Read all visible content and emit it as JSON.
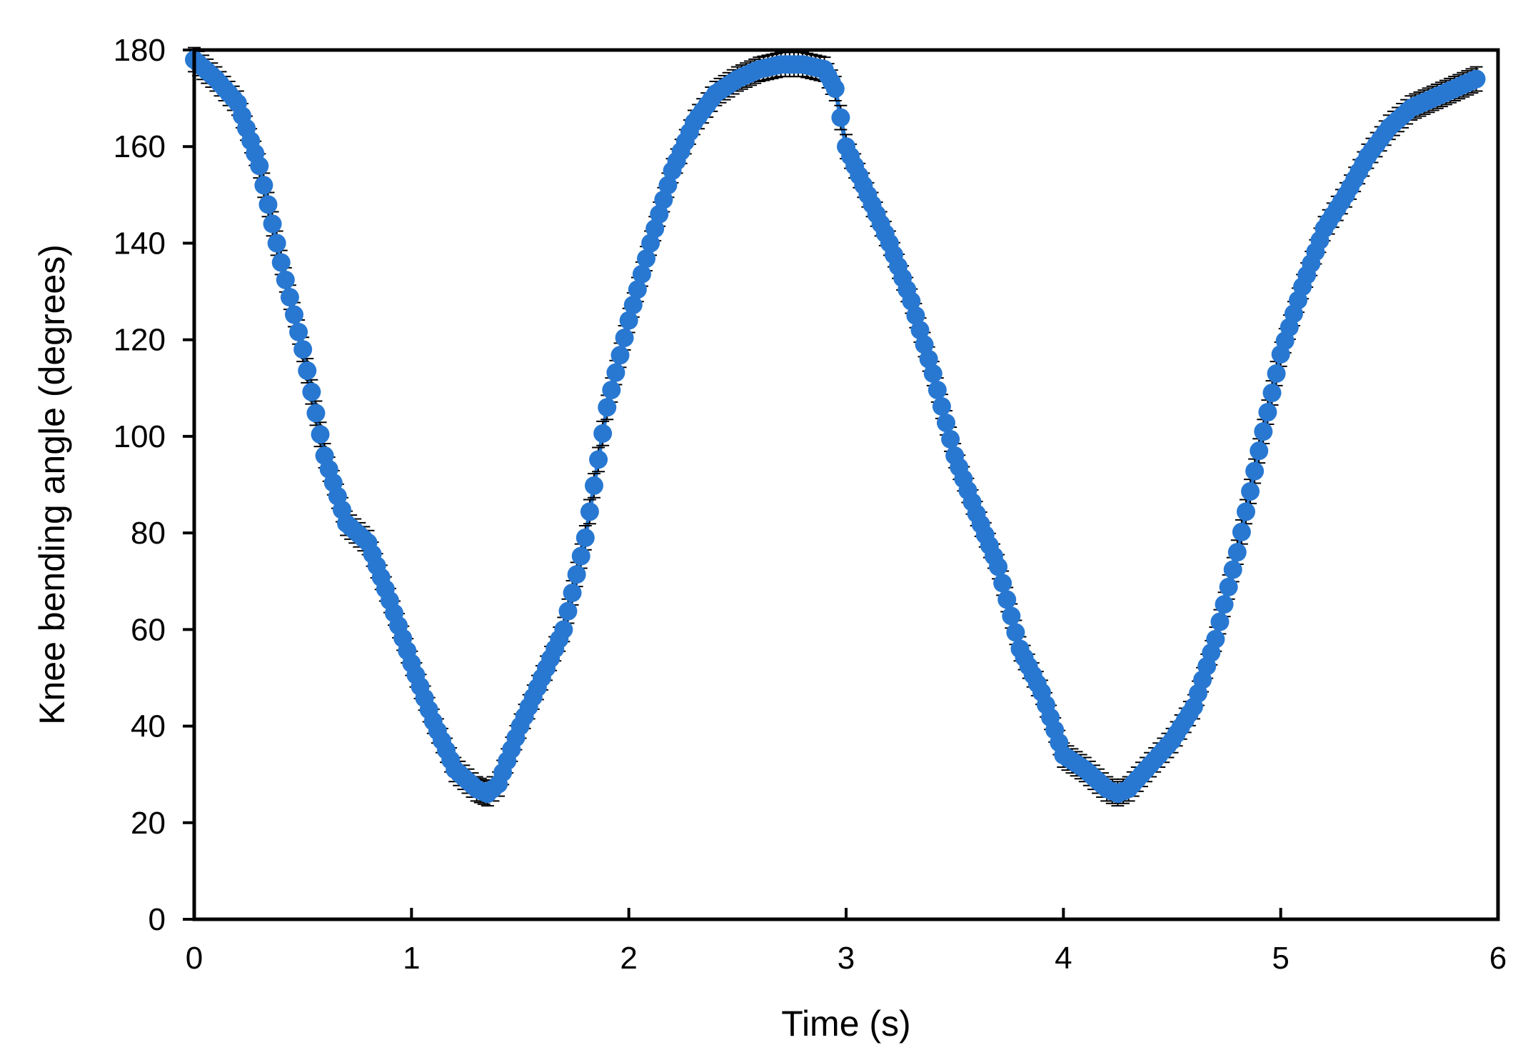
{
  "chart_data": {
    "type": "scatter",
    "title": "",
    "xlabel": "Time (s)",
    "ylabel": "Knee bending angle (degrees)",
    "xlim": [
      0,
      6
    ],
    "ylim": [
      0,
      180
    ],
    "xticks": [
      "0",
      "1",
      "2",
      "3",
      "4",
      "5",
      "6"
    ],
    "yticks": [
      "0",
      "20",
      "40",
      "60",
      "80",
      "100",
      "120",
      "140",
      "160",
      "180"
    ],
    "grid": false,
    "legend": "none",
    "marker_color": "#2878d2",
    "error_bar_color": "#000000",
    "error_bar_size": 2.5,
    "series": [
      {
        "x": [
          0,
          0.1,
          0.2,
          0.3,
          0.4,
          0.5,
          0.6,
          0.7,
          0.8,
          0.9,
          1.0,
          1.1,
          1.2,
          1.3,
          1.35,
          1.4,
          1.5,
          1.6,
          1.7,
          1.8,
          1.9,
          2.0,
          2.1,
          2.2,
          2.3,
          2.4,
          2.5,
          2.6,
          2.7,
          2.8,
          2.9,
          2.95,
          3.0,
          3.1,
          3.2,
          3.3,
          3.4,
          3.5,
          3.6,
          3.7,
          3.8,
          3.9,
          4.0,
          4.1,
          4.2,
          4.25,
          4.3,
          4.4,
          4.5,
          4.6,
          4.7,
          4.8,
          4.9,
          5.0,
          5.1,
          5.2,
          5.3,
          5.4,
          5.5,
          5.6,
          5.7,
          5.8,
          5.9
        ],
        "y": [
          178,
          174,
          169,
          156,
          136,
          118,
          96,
          82,
          78,
          66,
          53,
          41,
          31,
          27,
          26,
          28,
          40,
          50,
          60,
          79,
          106,
          124,
          140,
          155,
          165,
          171,
          174,
          176,
          177,
          177,
          176,
          172,
          160,
          150,
          140,
          128,
          113,
          96,
          84,
          73,
          56,
          47,
          34,
          31,
          27,
          26,
          27,
          32,
          37,
          44,
          58,
          76,
          97,
          117,
          131,
          143,
          150,
          158,
          164,
          168,
          170,
          172,
          174
        ]
      }
    ]
  }
}
